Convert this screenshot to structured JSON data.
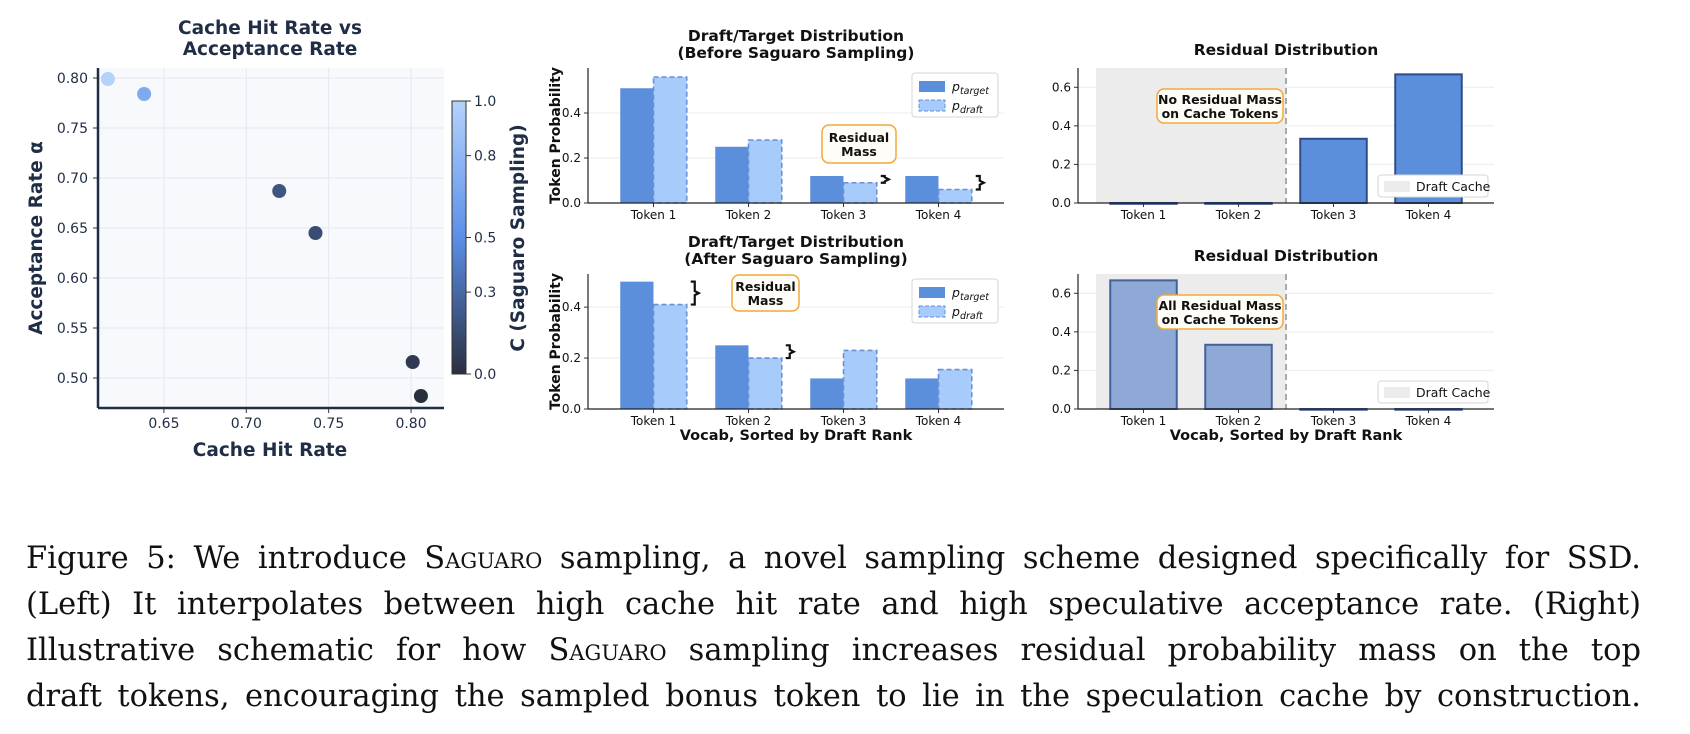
{
  "chart_data": [
    {
      "id": "scatter",
      "type": "scatter",
      "title": [
        "Cache Hit Rate vs",
        "Acceptance Rate"
      ],
      "xlabel": "Cache Hit Rate",
      "ylabel": "Acceptance Rate α",
      "xlim": [
        0.61,
        0.82
      ],
      "ylim": [
        0.47,
        0.81
      ],
      "xticks": [
        "0.65",
        "0.70",
        "0.75",
        "0.80"
      ],
      "yticks": [
        "0.50",
        "0.55",
        "0.60",
        "0.65",
        "0.70",
        "0.75",
        "0.80"
      ],
      "grid": true,
      "points": [
        {
          "x": 0.616,
          "y": 0.799,
          "c": 1.0
        },
        {
          "x": 0.638,
          "y": 0.784,
          "c": 0.7
        },
        {
          "x": 0.72,
          "y": 0.687,
          "c": 0.2
        },
        {
          "x": 0.742,
          "y": 0.645,
          "c": 0.15
        },
        {
          "x": 0.801,
          "y": 0.516,
          "c": 0.05
        },
        {
          "x": 0.806,
          "y": 0.482,
          "c": 0.0
        }
      ],
      "colorbar": {
        "label": "C (Saguaro Sampling)",
        "range": [
          0.0,
          1.0
        ],
        "ticks": [
          "0.0",
          "0.3",
          "0.5",
          "0.8",
          "1.0"
        ]
      }
    },
    {
      "id": "draft-before",
      "type": "bar",
      "title": [
        "Draft/Target Distribution",
        "(Before Saguaro Sampling)"
      ],
      "ylabel": "Token Probability",
      "xlabel": "",
      "categories": [
        "Token 1",
        "Token 2",
        "Token 3",
        "Token 4"
      ],
      "ylim": [
        0,
        0.6
      ],
      "yticks": [
        "0.0",
        "0.2",
        "0.4"
      ],
      "series": [
        {
          "name": "ptarget",
          "values": [
            0.51,
            0.25,
            0.12,
            0.12
          ]
        },
        {
          "name": "pdraft",
          "values": [
            0.56,
            0.28,
            0.09,
            0.06
          ]
        }
      ],
      "annotation": [
        "Residual",
        "Mass"
      ],
      "legend": "top-right"
    },
    {
      "id": "draft-after",
      "type": "bar",
      "title": [
        "Draft/Target Distribution",
        "(After Saguaro Sampling)"
      ],
      "ylabel": "Token Probability",
      "xlabel": "Vocab, Sorted by Draft Rank",
      "categories": [
        "Token 1",
        "Token 2",
        "Token 3",
        "Token 4"
      ],
      "ylim": [
        0,
        0.53
      ],
      "yticks": [
        "0.0",
        "0.2",
        "0.4"
      ],
      "series": [
        {
          "name": "ptarget",
          "values": [
            0.5,
            0.25,
            0.12,
            0.12
          ]
        },
        {
          "name": "pdraft",
          "values": [
            0.41,
            0.2,
            0.23,
            0.155
          ]
        }
      ],
      "annotation": [
        "Residual",
        "Mass"
      ],
      "legend": "top-right"
    },
    {
      "id": "residual-before",
      "type": "bar",
      "title": "Residual Distribution",
      "xlabel": "",
      "categories": [
        "Token 1",
        "Token 2",
        "Token 3",
        "Token 4"
      ],
      "ylim": [
        0,
        0.7
      ],
      "yticks": [
        "0.0",
        "0.2",
        "0.4",
        "0.6"
      ],
      "values": [
        0.0,
        0.0,
        0.333,
        0.667
      ],
      "cache_region": "Token 1–Token 2",
      "annotation": [
        "No Residual Mass",
        "on Cache Tokens"
      ],
      "legend": "Draft Cache"
    },
    {
      "id": "residual-after",
      "type": "bar",
      "title": "Residual Distribution",
      "xlabel": "Vocab, Sorted by Draft Rank",
      "categories": [
        "Token 1",
        "Token 2",
        "Token 3",
        "Token 4"
      ],
      "ylim": [
        0,
        0.7
      ],
      "yticks": [
        "0.0",
        "0.2",
        "0.4",
        "0.6"
      ],
      "values": [
        0.667,
        0.333,
        0.0,
        0.0
      ],
      "cache_region": "Token 1–Token 2",
      "annotation": [
        "All Residual Mass",
        "on Cache Tokens"
      ],
      "legend": "Draft Cache"
    }
  ],
  "caption": {
    "l1a": "Figure 5: We introduce ",
    "sc1": "Saguaro",
    "l1b": " sampling, a novel sampling scheme designed specifically for SSD.",
    "l2": "(Left) It interpolates between high cache hit rate and high speculative acceptance rate.  (Right)",
    "l3a": "Illustrative schematic for how ",
    "sc2": "Saguaro",
    "l3b": " sampling increases residual probability mass on the top",
    "l4": "draft tokens, encouraging the sampled bonus token to lie in the speculation cache by construction."
  },
  "colors": {
    "target": "#5b8fdc",
    "draft": "#a7cbfa",
    "residual_before": "#5b8fdc",
    "residual_after": "#8fa9d6",
    "cache_region": "#ececec",
    "annotation_border": "#f2a93b",
    "axis_text": "#1f2d45",
    "plot_bg": "#f7f9fc"
  }
}
